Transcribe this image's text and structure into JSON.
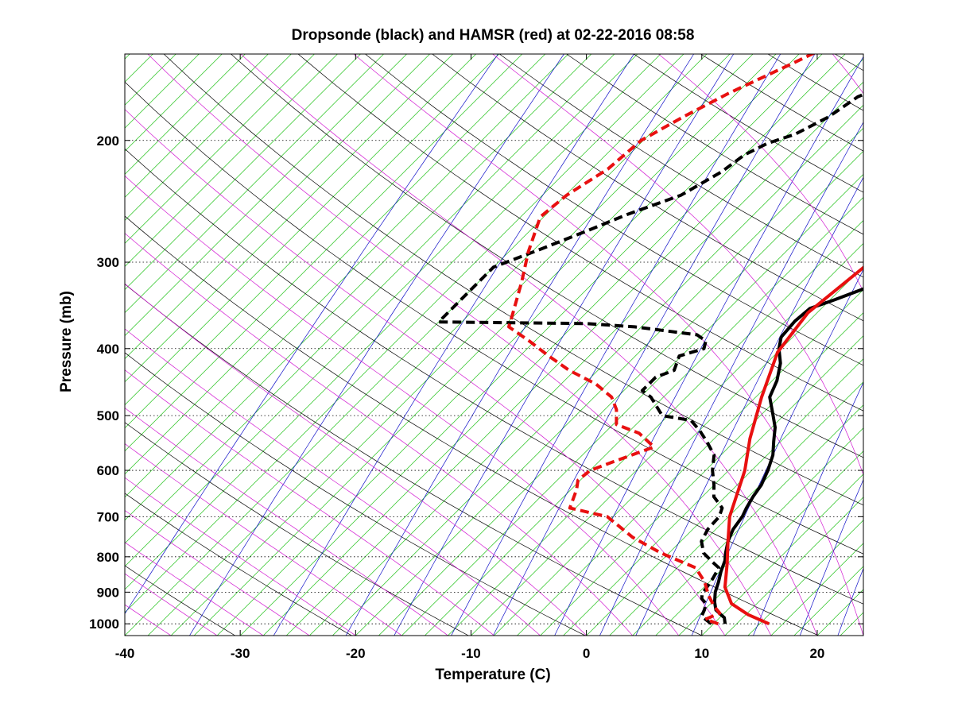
{
  "chart_data": {
    "type": "line",
    "title": "Dropsonde (black) and HAMSR (red) at 02-22-2016 08:58",
    "xlabel": "Temperature (C)",
    "ylabel": "Pressure (mb)",
    "xlim": [
      -40,
      24
    ],
    "ylim": [
      1040,
      150
    ],
    "y_scale": "log",
    "x_ticks": [
      -40,
      -30,
      -20,
      -10,
      0,
      10,
      20
    ],
    "y_ticks": [
      200,
      300,
      400,
      500,
      600,
      700,
      800,
      900,
      1000
    ],
    "grid": "dotted horizontal at pressure ticks",
    "background": "skew-T diagram with isotherms, dry adiabats, moist adiabats and mixing-ratio lines",
    "series": [
      {
        "kind": "temperature",
        "color": "#000000",
        "style": "solid",
        "points": [
          [
            11.0,
            1000
          ],
          [
            10.4,
            980
          ],
          [
            9.0,
            955
          ],
          [
            8.2,
            930
          ],
          [
            7.4,
            900
          ],
          [
            6.8,
            870
          ],
          [
            6.1,
            840
          ],
          [
            5.5,
            810
          ],
          [
            4.9,
            790
          ],
          [
            4.1,
            760
          ],
          [
            3.5,
            730
          ],
          [
            3.2,
            700
          ],
          [
            2.8,
            680
          ],
          [
            2.4,
            655
          ],
          [
            2.1,
            630
          ],
          [
            1.4,
            600
          ],
          [
            0.5,
            570
          ],
          [
            -0.6,
            545
          ],
          [
            -1.7,
            520
          ],
          [
            -3.2,
            495
          ],
          [
            -4.8,
            470
          ],
          [
            -5.6,
            445
          ],
          [
            -6.8,
            420
          ],
          [
            -8.2,
            400
          ],
          [
            -9.0,
            385
          ],
          [
            -9.2,
            365
          ],
          [
            -9.0,
            350
          ],
          [
            -7.6,
            340
          ],
          [
            -5.0,
            320
          ],
          [
            -2.8,
            300
          ],
          [
            -0.8,
            280
          ],
          [
            1.4,
            260
          ],
          [
            3.2,
            250
          ],
          [
            4.8,
            240
          ],
          [
            4.5,
            230
          ],
          [
            4.8,
            215
          ],
          [
            6.4,
            200
          ],
          [
            7.8,
            190
          ],
          [
            7.6,
            180
          ],
          [
            9.7,
            170
          ],
          [
            11.5,
            162
          ],
          [
            12.8,
            155
          ],
          [
            13.5,
            148
          ],
          [
            13.6,
            140
          ]
        ]
      },
      {
        "kind": "dewpoint",
        "color": "#000000",
        "style": "dashed",
        "points": [
          [
            9.8,
            1000
          ],
          [
            9.2,
            990
          ],
          [
            8.3,
            975
          ],
          [
            8.0,
            955
          ],
          [
            7.6,
            935
          ],
          [
            6.8,
            920
          ],
          [
            6.4,
            905
          ],
          [
            6.2,
            880
          ],
          [
            6.0,
            860
          ],
          [
            5.6,
            830
          ],
          [
            4.6,
            815
          ],
          [
            3.0,
            790
          ],
          [
            1.8,
            760
          ],
          [
            1.3,
            730
          ],
          [
            1.2,
            700
          ],
          [
            0.7,
            680
          ],
          [
            -1.0,
            655
          ],
          [
            -2.0,
            630
          ],
          [
            -3.4,
            600
          ],
          [
            -4.6,
            570
          ],
          [
            -6.4,
            545
          ],
          [
            -8.0,
            525
          ],
          [
            -9.6,
            508
          ],
          [
            -12.5,
            500
          ],
          [
            -15.1,
            470
          ],
          [
            -16.4,
            460
          ],
          [
            -16.4,
            440
          ],
          [
            -15.4,
            430
          ],
          [
            -16.2,
            410
          ],
          [
            -14.7,
            400
          ],
          [
            -15.2,
            390
          ],
          [
            -16.5,
            382
          ],
          [
            -22.6,
            372
          ],
          [
            -27.0,
            368
          ],
          [
            -40.0,
            366
          ],
          [
            -40.0,
            305
          ],
          [
            -37.3,
            286
          ],
          [
            -35.0,
            270
          ],
          [
            -33.0,
            256
          ],
          [
            -30.0,
            240
          ],
          [
            -28.5,
            222
          ],
          [
            -28.0,
            210
          ],
          [
            -27.0,
            202
          ],
          [
            -25.4,
            196
          ],
          [
            -24.0,
            185
          ],
          [
            -23.2,
            173
          ],
          [
            -21.0,
            163
          ],
          [
            -19.2,
            155
          ],
          [
            -18.8,
            148
          ]
        ]
      },
      {
        "kind": "temperature",
        "color": "#e81010",
        "style": "solid",
        "points": [
          [
            14.8,
            1000
          ],
          [
            12.2,
            970
          ],
          [
            9.8,
            935
          ],
          [
            7.8,
            885
          ],
          [
            6.0,
            820
          ],
          [
            4.1,
            760
          ],
          [
            2.1,
            700
          ],
          [
            -0.6,
            600
          ],
          [
            -2.9,
            540
          ],
          [
            -5.5,
            470
          ],
          [
            -8.0,
            405
          ],
          [
            -8.8,
            355
          ],
          [
            -7.8,
            300
          ],
          [
            -4.9,
            275
          ],
          [
            -2.0,
            250
          ],
          [
            2.8,
            220
          ],
          [
            5.6,
            200
          ],
          [
            7.8,
            180
          ],
          [
            9.6,
            160
          ],
          [
            10.4,
            150
          ]
        ]
      },
      {
        "kind": "dewpoint",
        "color": "#e81010",
        "style": "dashed",
        "points": [
          [
            10.4,
            1000
          ],
          [
            8.9,
            985
          ],
          [
            9.6,
            965
          ],
          [
            8.6,
            945
          ],
          [
            7.1,
            910
          ],
          [
            5.6,
            870
          ],
          [
            3.6,
            830
          ],
          [
            -0.7,
            790
          ],
          [
            -4.5,
            750
          ],
          [
            -8.5,
            700
          ],
          [
            -12.5,
            680
          ],
          [
            -13.5,
            640
          ],
          [
            -14.2,
            620
          ],
          [
            -14.0,
            600
          ],
          [
            -12.5,
            580
          ],
          [
            -10.5,
            555
          ],
          [
            -13.0,
            530
          ],
          [
            -15.7,
            515
          ],
          [
            -17.0,
            490
          ],
          [
            -18.5,
            470
          ],
          [
            -21.0,
            450
          ],
          [
            -24.5,
            430
          ],
          [
            -27.5,
            410
          ],
          [
            -30.5,
            390
          ],
          [
            -33.5,
            372
          ],
          [
            -34.3,
            356
          ],
          [
            -36.3,
            320
          ],
          [
            -38.3,
            290
          ],
          [
            -40.3,
            258
          ],
          [
            -39.9,
            240
          ],
          [
            -38.6,
            220
          ],
          [
            -38.2,
            200
          ],
          [
            -36.6,
            185
          ],
          [
            -34.7,
            171
          ],
          [
            -31.8,
            155
          ],
          [
            -30.5,
            148
          ]
        ]
      }
    ]
  }
}
